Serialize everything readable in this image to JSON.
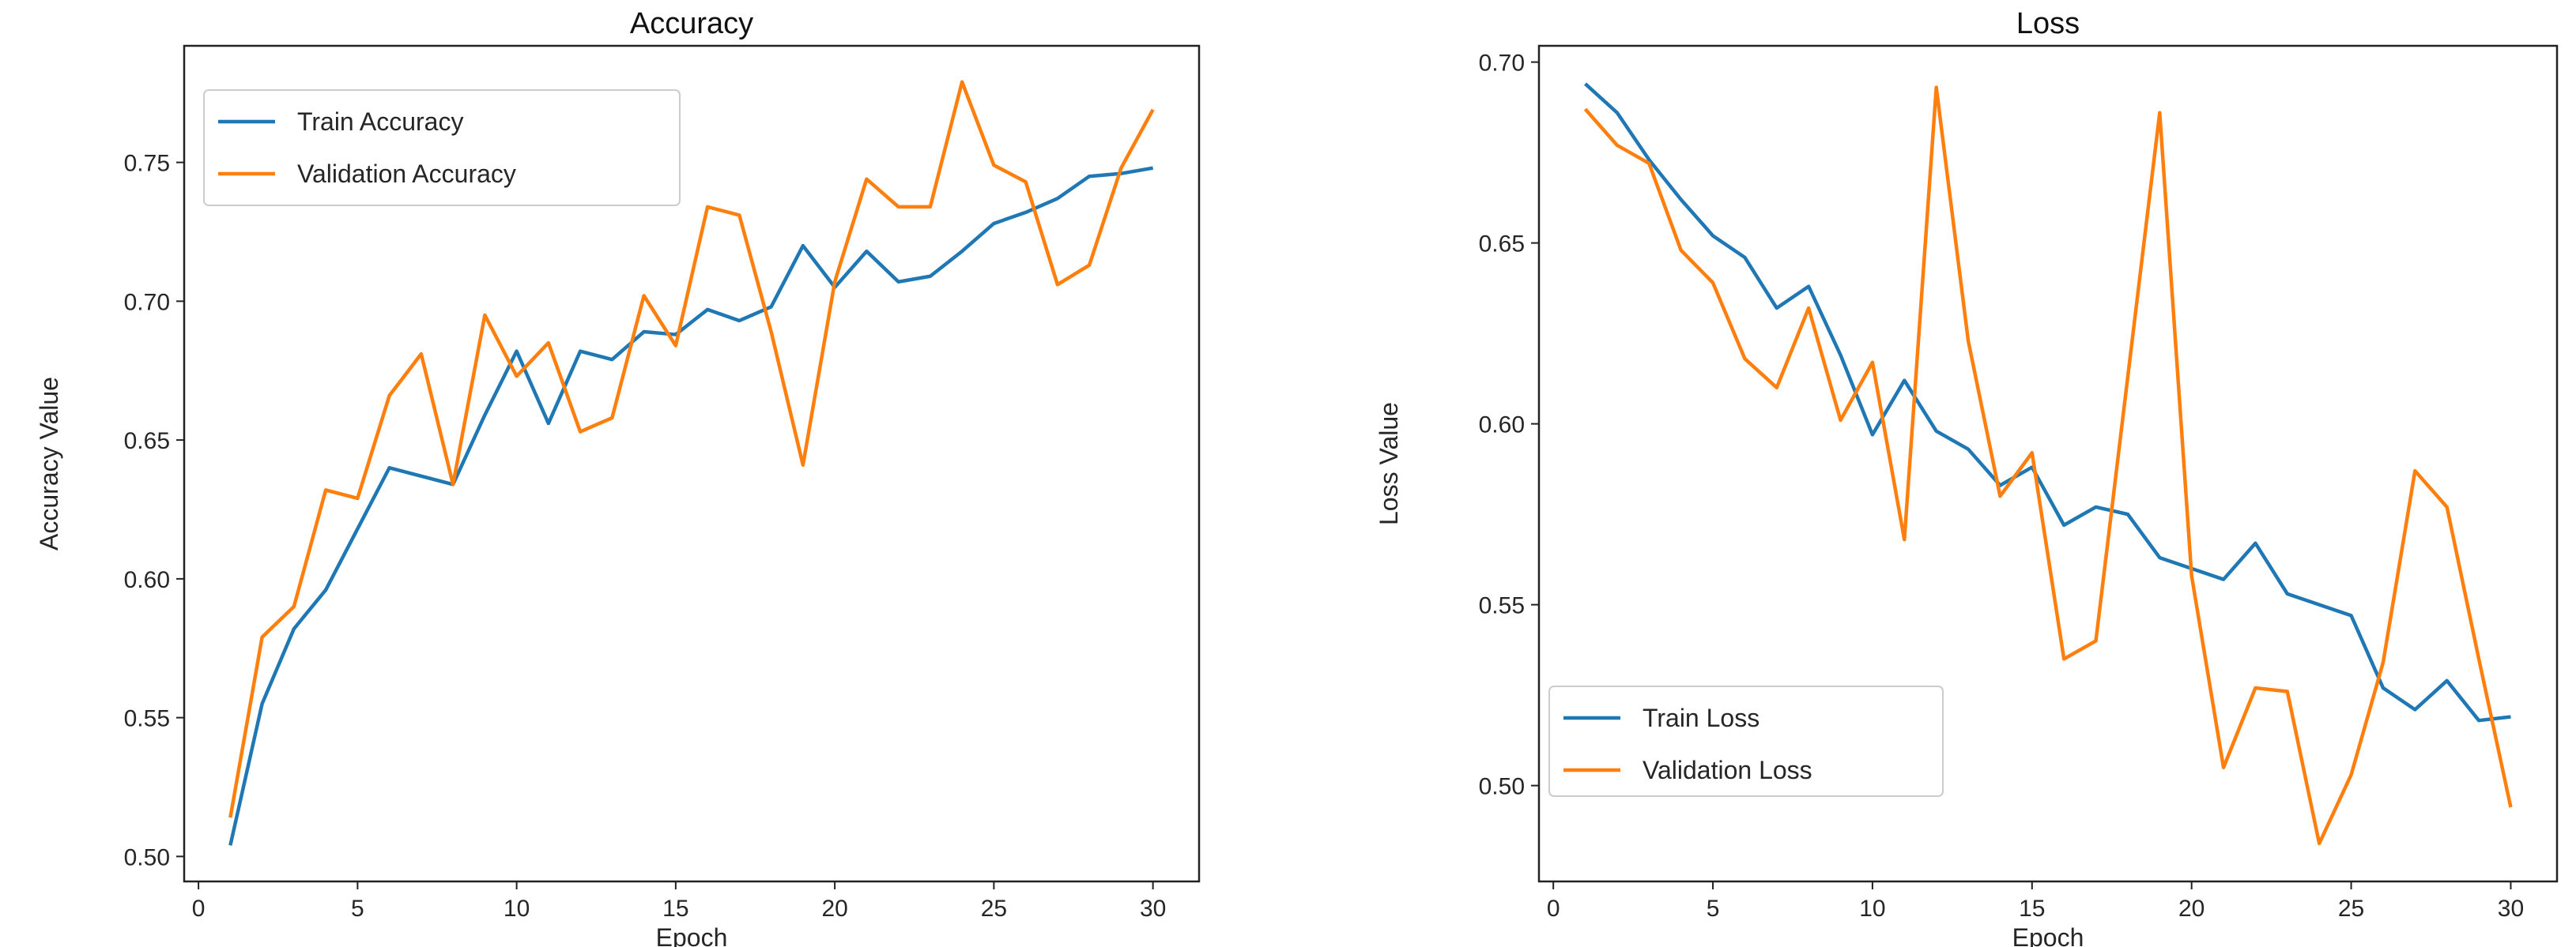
{
  "colors": {
    "train": "#1f77b4",
    "validation": "#ff7f0e"
  },
  "chart_data": [
    {
      "type": "line",
      "title": "Accuracy",
      "xlabel": "Epoch",
      "ylabel": "Accuracy Value",
      "xlim": [
        -0.45,
        31.45
      ],
      "ylim": [
        0.491,
        0.792
      ],
      "xticks": [
        0,
        5,
        10,
        15,
        20,
        25,
        30
      ],
      "yticks": [
        "0.50",
        "0.55",
        "0.60",
        "0.65",
        "0.70",
        "0.75"
      ],
      "legend_position": "upper-left",
      "grid": false,
      "x": [
        1,
        2,
        3,
        4,
        5,
        6,
        7,
        8,
        9,
        10,
        11,
        12,
        13,
        14,
        15,
        16,
        17,
        18,
        19,
        20,
        21,
        22,
        23,
        24,
        25,
        26,
        27,
        28,
        29,
        30
      ],
      "series": [
        {
          "name": "Train Accuracy",
          "color_key": "train",
          "values": [
            0.504,
            0.555,
            0.582,
            0.596,
            0.618,
            0.64,
            0.637,
            0.634,
            0.659,
            0.682,
            0.656,
            0.682,
            0.679,
            0.689,
            0.688,
            0.697,
            0.693,
            0.698,
            0.72,
            0.705,
            0.718,
            0.707,
            0.709,
            0.718,
            0.728,
            0.732,
            0.737,
            0.745,
            0.746,
            0.748
          ]
        },
        {
          "name": "Validation Accuracy",
          "color_key": "validation",
          "values": [
            0.514,
            0.579,
            0.59,
            0.632,
            0.629,
            0.666,
            0.681,
            0.634,
            0.695,
            0.673,
            0.685,
            0.653,
            0.658,
            0.702,
            0.684,
            0.734,
            0.731,
            0.689,
            0.641,
            0.707,
            0.744,
            0.734,
            0.734,
            0.779,
            0.749,
            0.743,
            0.706,
            0.713,
            0.748,
            0.769
          ]
        }
      ]
    },
    {
      "type": "line",
      "title": "Loss",
      "xlabel": "Epoch",
      "ylabel": "Loss Value",
      "xlim": [
        -0.45,
        31.45
      ],
      "ylim": [
        0.4735,
        0.7045
      ],
      "xticks": [
        0,
        5,
        10,
        15,
        20,
        25,
        30
      ],
      "yticks": [
        "0.50",
        "0.55",
        "0.60",
        "0.65",
        "0.70"
      ],
      "legend_position": "lower-left",
      "grid": false,
      "x": [
        1,
        2,
        3,
        4,
        5,
        6,
        7,
        8,
        9,
        10,
        11,
        12,
        13,
        14,
        15,
        16,
        17,
        18,
        19,
        20,
        21,
        22,
        23,
        24,
        25,
        26,
        27,
        28,
        29,
        30
      ],
      "series": [
        {
          "name": "Train Loss",
          "color_key": "train",
          "values": [
            0.694,
            0.686,
            0.673,
            0.662,
            0.652,
            0.646,
            0.632,
            0.638,
            0.619,
            0.597,
            0.612,
            0.598,
            0.593,
            0.583,
            0.588,
            0.572,
            0.577,
            0.575,
            0.563,
            0.56,
            0.557,
            0.567,
            0.553,
            0.55,
            0.547,
            0.527,
            0.521,
            0.529,
            0.518,
            0.519
          ]
        },
        {
          "name": "Validation Loss",
          "color_key": "validation",
          "values": [
            0.687,
            0.677,
            0.672,
            0.648,
            0.639,
            0.618,
            0.61,
            0.632,
            0.601,
            0.617,
            0.568,
            0.693,
            0.623,
            0.58,
            0.592,
            0.535,
            0.54,
            0.613,
            0.686,
            0.558,
            0.505,
            0.527,
            0.526,
            0.484,
            0.503,
            0.534,
            0.587,
            0.577,
            0.535,
            0.494
          ]
        }
      ]
    }
  ]
}
